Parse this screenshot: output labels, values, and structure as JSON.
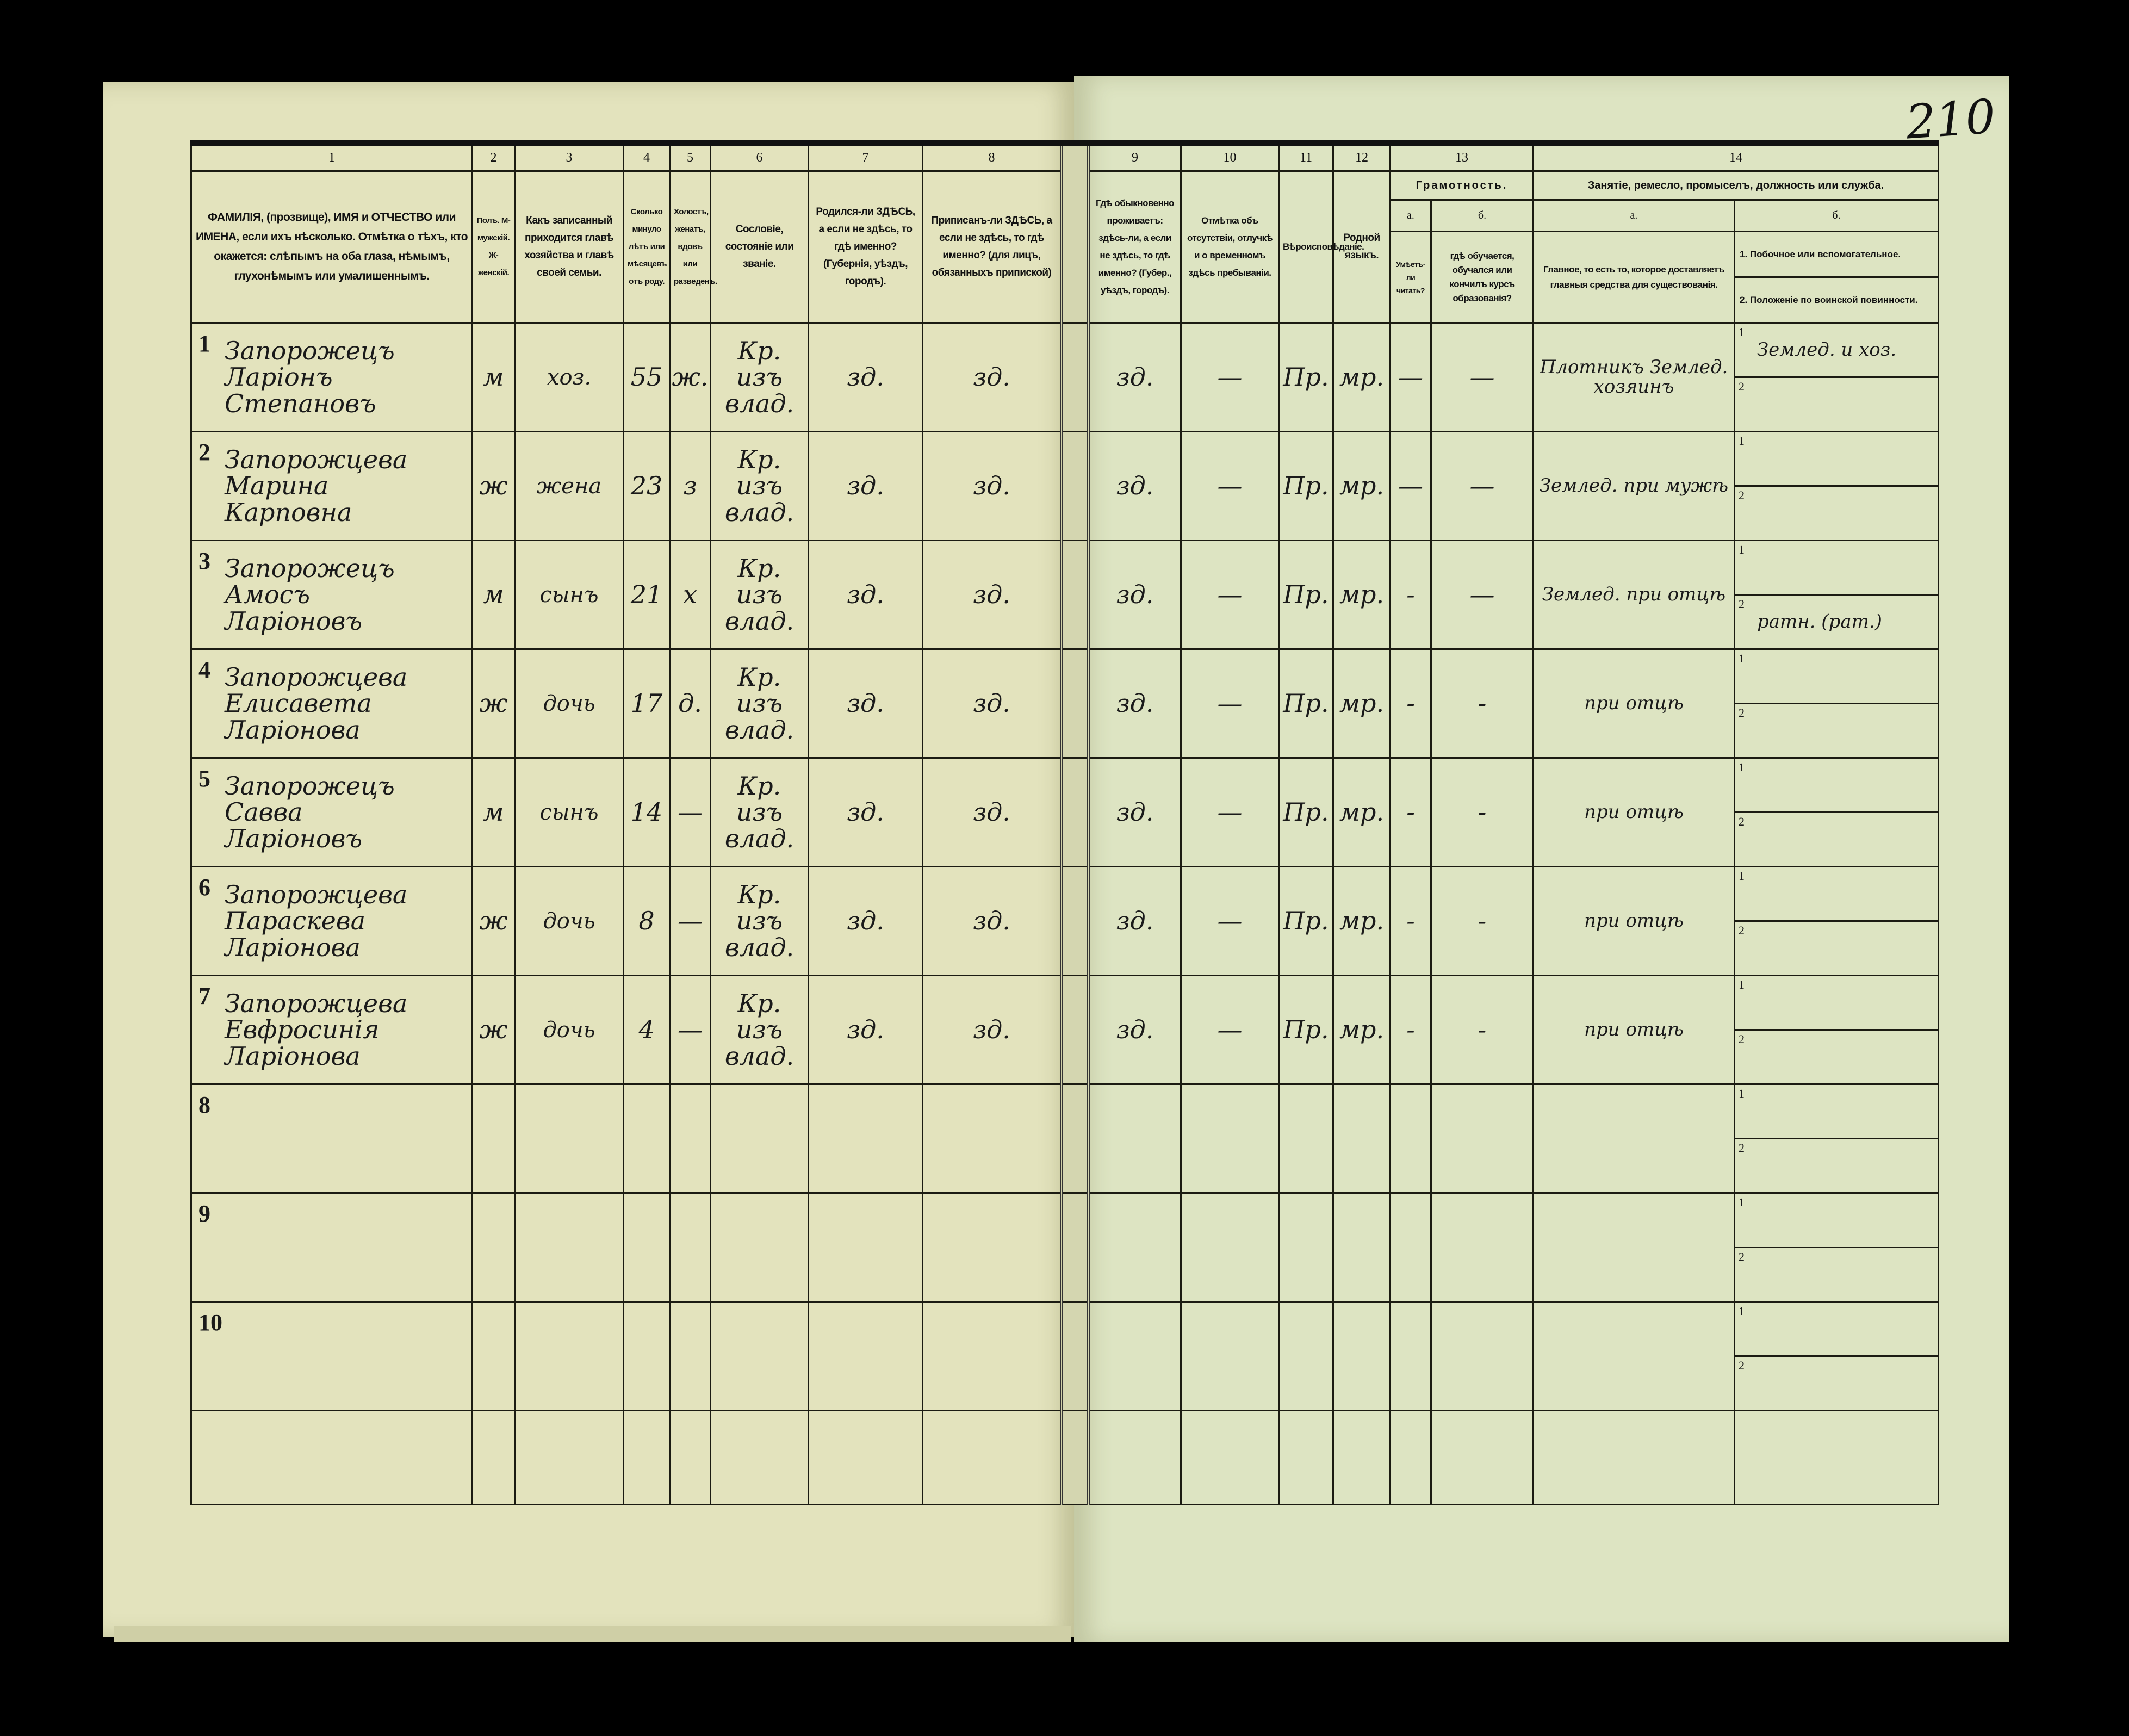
{
  "page_number": "210",
  "header": {
    "numbers": [
      "1",
      "2",
      "3",
      "4",
      "5",
      "6",
      "7",
      "8",
      "9",
      "10",
      "11",
      "12",
      "13",
      "14"
    ],
    "col1": "ФАМИЛІЯ, (прозвище), ИМЯ и ОТЧЕСТВО или ИМЕНА, если ихъ нѣсколько. Отмѣтка о тѣхъ, кто окажется: слѣпымъ на оба глаза, нѣмымъ, глухонѣмымъ или умалишеннымъ.",
    "col2": "Полъ. М-мужскій. Ж-женскій.",
    "col3": "Какъ записанный приходится главѣ хозяйства и главѣ своей семьи.",
    "col4": "Сколько минуло лѣтъ или мѣсяцевъ отъ роду.",
    "col5": "Холостъ, женатъ, вдовъ или разведенъ.",
    "col6": "Сословіе, состояніе или званіе.",
    "col7": "Родился-ли ЗДѢСЬ, а если не здѣсь, то гдѣ именно? (Губернія, уѣздъ, городъ).",
    "col8": "Приписанъ-ли ЗДѢСЬ, а если не здѣсь, то гдѣ именно? (для лицъ, обязанныхъ припиской)",
    "col9": "Гдѣ обыкновенно проживаетъ: здѣсь-ли, а если не здѣсь, то гдѣ именно? (Губер., уѣздъ, городъ).",
    "col10": "Отмѣтка объ отсутствіи, отлучкѣ и о временномъ здѣсь пребываніи.",
    "col11": "Вѣроисповѣданіе.",
    "col12": "Родной языкъ.",
    "col13_title": "Грамотность.",
    "col13a_letter": "а.",
    "col13b_letter": "б.",
    "col13a": "Умѣетъ-ли читать?",
    "col13b": "гдѣ обучается, обучался или кончилъ курсъ образованія?",
    "col14_title": "Занятіе, ремесло, промыселъ, должность или служба.",
    "col14a_letter": "а.",
    "col14b_letter": "б.",
    "col14a": "Главное, то есть то, которое доставляетъ главныя средства для существованія.",
    "col14b_1": "1. Побочное или вспомогательное.",
    "col14b_2": "2. Положеніе по воинской повинности."
  },
  "rows": [
    {
      "num": "1",
      "name": [
        "Запорожецъ",
        "Ларіонъ",
        "Степановъ"
      ],
      "sex": "м",
      "relation": "хоз.",
      "age": "55",
      "marital": "ж.",
      "estate": [
        "Кр.",
        "изъ влад."
      ],
      "born": "зд.",
      "registered": "зд.",
      "residence": "зд.",
      "absence": "—",
      "religion": "Пр.",
      "language": "мр.",
      "literate": "—",
      "education": "—",
      "occupation": "Плотникъ Землед. хозяинъ",
      "secondary": "Землед. и хоз.",
      "military": ""
    },
    {
      "num": "2",
      "name": [
        "Запорожцева",
        "Марина",
        "Карповна"
      ],
      "sex": "ж",
      "relation": "жена",
      "age": "23",
      "marital": "з",
      "estate": [
        "Кр.",
        "изъ влад."
      ],
      "born": "зд.",
      "registered": "зд.",
      "residence": "зд.",
      "absence": "—",
      "religion": "Пр.",
      "language": "мр.",
      "literate": "—",
      "education": "—",
      "occupation": "Землед. при мужѣ",
      "secondary": "",
      "military": ""
    },
    {
      "num": "3",
      "name": [
        "Запорожецъ",
        "Амосъ",
        "Ларіоновъ"
      ],
      "sex": "м",
      "relation": "сынъ",
      "age": "21",
      "marital": "х",
      "estate": [
        "Кр.",
        "изъ влад."
      ],
      "born": "зд.",
      "registered": "зд.",
      "residence": "зд.",
      "absence": "—",
      "religion": "Пр.",
      "language": "мр.",
      "literate": "-",
      "education": "—",
      "occupation": "Землед. при отцѣ",
      "secondary": "",
      "military": "ратн. (рат.)"
    },
    {
      "num": "4",
      "name": [
        "Запорожцева",
        "Елисавета",
        "Ларіонова"
      ],
      "sex": "ж",
      "relation": "дочь",
      "age": "17",
      "marital": "д.",
      "estate": [
        "Кр.",
        "изъ влад."
      ],
      "born": "зд.",
      "registered": "зд.",
      "residence": "зд.",
      "absence": "—",
      "religion": "Пр.",
      "language": "мр.",
      "literate": "-",
      "education": "-",
      "occupation": "при отцѣ",
      "secondary": "",
      "military": ""
    },
    {
      "num": "5",
      "name": [
        "Запорожецъ",
        "Савва",
        "Ларіоновъ"
      ],
      "sex": "м",
      "relation": "сынъ",
      "age": "14",
      "marital": "—",
      "estate": [
        "Кр.",
        "изъ влад."
      ],
      "born": "зд.",
      "registered": "зд.",
      "residence": "зд.",
      "absence": "—",
      "religion": "Пр.",
      "language": "мр.",
      "literate": "-",
      "education": "-",
      "occupation": "при отцѣ",
      "secondary": "",
      "military": ""
    },
    {
      "num": "6",
      "name": [
        "Запорожцева",
        "Параскева",
        "Ларіонова"
      ],
      "sex": "ж",
      "relation": "дочь",
      "age": "8",
      "marital": "—",
      "estate": [
        "Кр.",
        "изъ влад."
      ],
      "born": "зд.",
      "registered": "зд.",
      "residence": "зд.",
      "absence": "—",
      "religion": "Пр.",
      "language": "мр.",
      "literate": "-",
      "education": "-",
      "occupation": "при отцѣ",
      "secondary": "",
      "military": ""
    },
    {
      "num": "7",
      "name": [
        "Запорожцева",
        "Евфросинія",
        "Ларіонова"
      ],
      "sex": "ж",
      "relation": "дочь",
      "age": "4",
      "marital": "—",
      "estate": [
        "Кр.",
        "изъ влад."
      ],
      "born": "зд.",
      "registered": "зд.",
      "residence": "зд.",
      "absence": "—",
      "religion": "Пр.",
      "language": "мр.",
      "literate": "-",
      "education": "-",
      "occupation": "при отцѣ",
      "secondary": "",
      "military": ""
    },
    {
      "num": "8",
      "name": [],
      "sex": "",
      "relation": "",
      "age": "",
      "marital": "",
      "estate": [],
      "born": "",
      "registered": "",
      "residence": "",
      "absence": "",
      "religion": "",
      "language": "",
      "literate": "",
      "education": "",
      "occupation": "",
      "secondary": "",
      "military": ""
    },
    {
      "num": "9",
      "name": [],
      "sex": "",
      "relation": "",
      "age": "",
      "marital": "",
      "estate": [],
      "born": "",
      "registered": "",
      "residence": "",
      "absence": "",
      "religion": "",
      "language": "",
      "literate": "",
      "education": "",
      "occupation": "",
      "secondary": "",
      "military": ""
    },
    {
      "num": "10",
      "name": [],
      "sex": "",
      "relation": "",
      "age": "",
      "marital": "",
      "estate": [],
      "born": "",
      "registered": "",
      "residence": "",
      "absence": "",
      "religion": "",
      "language": "",
      "literate": "",
      "education": "",
      "occupation": "",
      "secondary": "",
      "military": ""
    }
  ],
  "sub_indices": [
    "1",
    "2"
  ]
}
